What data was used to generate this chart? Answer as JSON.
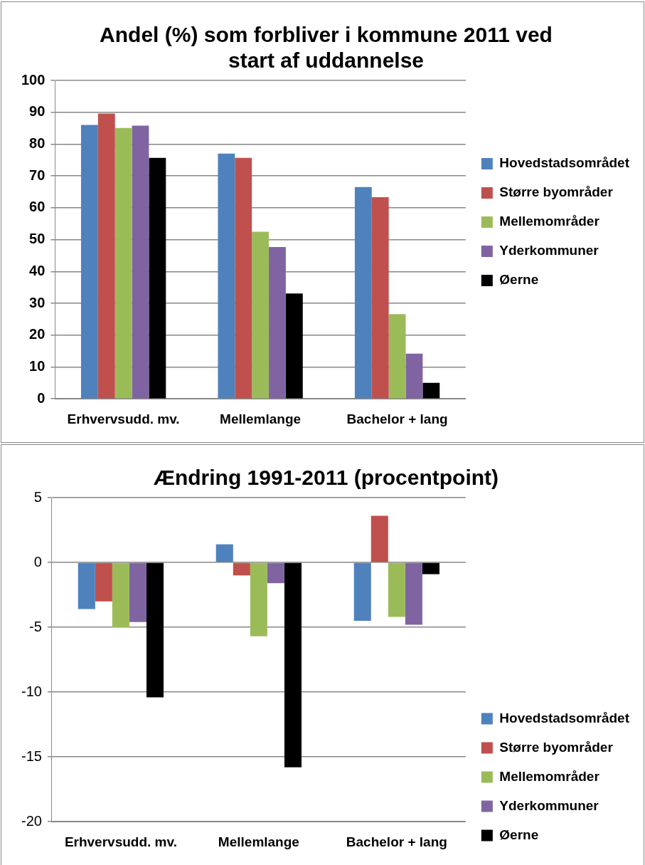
{
  "chart_data": [
    {
      "type": "bar",
      "title": "Andel (%) som forbliver i kommune 2011 ved start af uddannelse",
      "categories": [
        "Erhvervsudd. mv.",
        "Mellemlange",
        "Bachelor + lang"
      ],
      "series": [
        {
          "name": "Hovedstadsområdet",
          "color": "#4f81bd",
          "values": [
            86.0,
            77.0,
            66.5
          ]
        },
        {
          "name": "Større byområder",
          "color": "#c0504d",
          "values": [
            89.6,
            75.7,
            63.3
          ]
        },
        {
          "name": "Mellemområder",
          "color": "#9bbb59",
          "values": [
            85.1,
            52.5,
            26.6
          ]
        },
        {
          "name": "Yderkommuner",
          "color": "#8064a2",
          "values": [
            85.8,
            47.7,
            14.2
          ]
        },
        {
          "name": "Øerne",
          "color": "#000000",
          "values": [
            75.7,
            33.1,
            5.0
          ]
        }
      ],
      "ylim": [
        0,
        100
      ],
      "yticks": [
        0,
        10,
        20,
        30,
        40,
        50,
        60,
        70,
        80,
        90,
        100
      ],
      "grid": "y",
      "legend": "right"
    },
    {
      "type": "bar",
      "title": "Ændring 1991-2011 (procentpoint)",
      "categories": [
        "Erhvervsudd. mv.",
        "Mellemlange",
        "Bachelor + lang"
      ],
      "series": [
        {
          "name": "Hovedstadsområdet",
          "color": "#4f81bd",
          "values": [
            -3.6,
            1.4,
            -4.5
          ]
        },
        {
          "name": "Større byområder",
          "color": "#c0504d",
          "values": [
            -3.0,
            -1.0,
            3.6
          ]
        },
        {
          "name": "Mellemområder",
          "color": "#9bbb59",
          "values": [
            -5.0,
            -5.7,
            -4.2
          ]
        },
        {
          "name": "Yderkommuner",
          "color": "#8064a2",
          "values": [
            -4.6,
            -1.6,
            -4.8
          ]
        },
        {
          "name": "Øerne",
          "color": "#000000",
          "values": [
            -10.4,
            -15.8,
            -0.9
          ]
        }
      ],
      "ylim": [
        -20,
        5
      ],
      "yticks": [
        -20,
        -15,
        -10,
        -5,
        0,
        5
      ],
      "grid": "y",
      "legend": "bottom right"
    }
  ]
}
